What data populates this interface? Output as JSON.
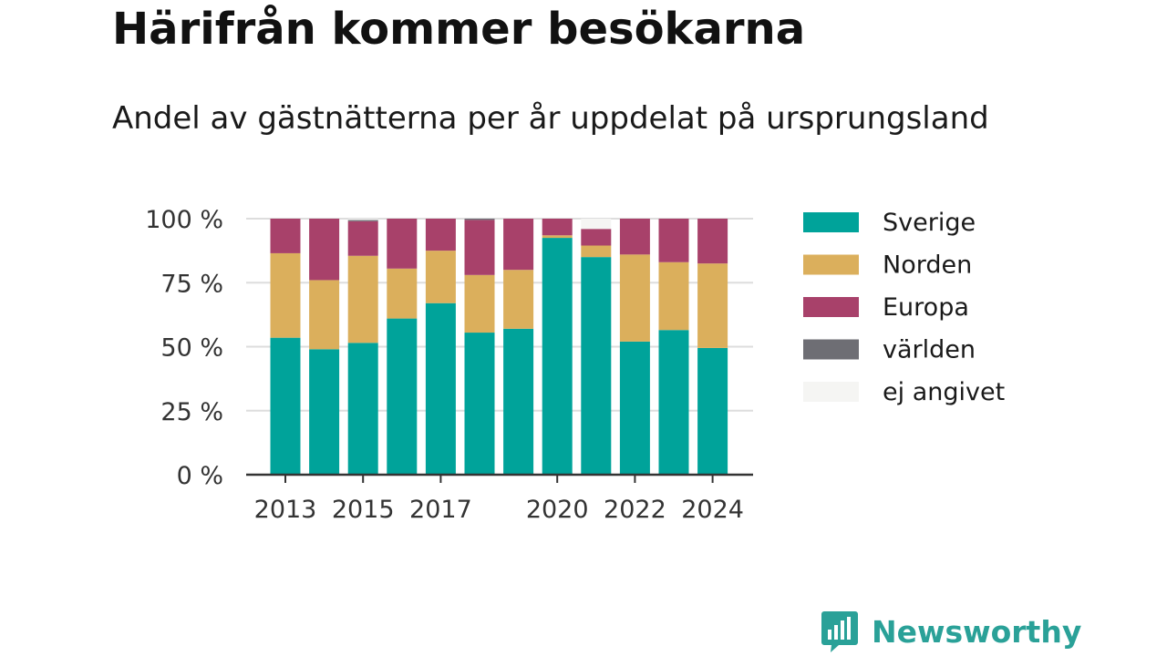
{
  "title": "Härifrån kommer besökarna",
  "subtitle": "Andel av gästnätterna per år uppdelat på ursprungsland",
  "brand": {
    "name": "Newsworthy",
    "icon": "bar-chart-speech-bubble-icon",
    "color": "#2aa198"
  },
  "chart_data": {
    "type": "bar",
    "stacked": true,
    "categories": [
      "2013",
      "2014",
      "2015",
      "2016",
      "2017",
      "2018",
      "2019",
      "2020",
      "2021",
      "2022",
      "2023",
      "2024"
    ],
    "x_tick_labels": [
      "2013",
      "2015",
      "2017",
      "2020",
      "2022",
      "2024"
    ],
    "y_tick_labels": [
      "0 %",
      "25 %",
      "50 %",
      "75 %",
      "100 %"
    ],
    "y_ticks": [
      0,
      25,
      50,
      75,
      100
    ],
    "ylim": [
      0,
      100
    ],
    "grid": true,
    "legend_position": "right",
    "series": [
      {
        "name": "Sverige",
        "color": "#00a39a",
        "values": [
          53.5,
          49,
          51.5,
          61,
          67,
          55.5,
          57,
          92.5,
          85,
          52,
          56.5,
          49.5
        ]
      },
      {
        "name": "Norden",
        "color": "#dbaf5c",
        "values": [
          33,
          27,
          34,
          19.5,
          20.5,
          22.5,
          23,
          1,
          4.5,
          34,
          26.5,
          33
        ]
      },
      {
        "name": "Europa",
        "color": "#a8416a",
        "values": [
          13.5,
          24,
          13.5,
          19.5,
          12.5,
          21.5,
          20,
          6.5,
          6.5,
          14,
          17,
          17.5
        ]
      },
      {
        "name": "världen",
        "color": "#6e6e74",
        "values": [
          0,
          0,
          0.5,
          0,
          0,
          0.5,
          0,
          0,
          0,
          0,
          0,
          0
        ]
      },
      {
        "name": "ej angivet",
        "color": "#f5f5f3",
        "values": [
          0,
          0,
          0.5,
          0,
          0,
          0,
          0,
          0,
          4,
          0,
          0,
          0
        ]
      }
    ]
  }
}
